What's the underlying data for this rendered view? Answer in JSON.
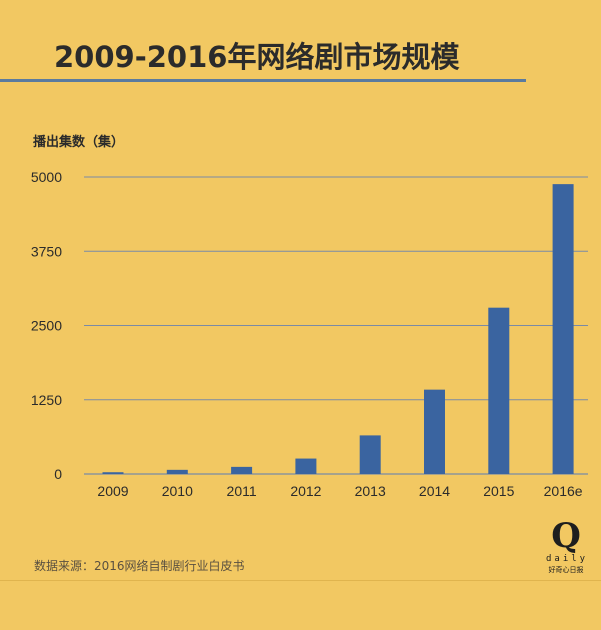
{
  "title": "2009-2016年网络剧市场规模",
  "ylabel": "播出集数（集）",
  "source": "数据来源：2016网络自制剧行业白皮书",
  "logo": {
    "mark": "Q",
    "word": "daily",
    "cn": "好奇心日报"
  },
  "colors": {
    "background": "#f2c862",
    "bar": "#3a64a0",
    "grid": "#7a8aa6"
  },
  "chart_data": {
    "type": "bar",
    "title": "2009-2016年网络剧市场规模",
    "xlabel": "",
    "ylabel": "播出集数（集）",
    "categories": [
      "2009",
      "2010",
      "2011",
      "2012",
      "2013",
      "2014",
      "2015",
      "2016e"
    ],
    "values": [
      30,
      70,
      120,
      260,
      650,
      1420,
      2800,
      4880
    ],
    "ylim": [
      0,
      5000
    ],
    "yticks": [
      0,
      1250,
      2500,
      3750,
      5000
    ],
    "grid": true,
    "legend": "none"
  }
}
